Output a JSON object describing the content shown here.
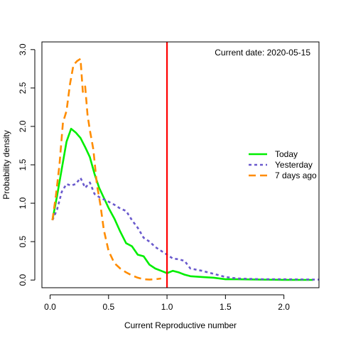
{
  "chart_data": {
    "type": "line",
    "xlabel": "Current Reproductive number",
    "ylabel": "Probability density",
    "xlim": [
      -0.07,
      2.3
    ],
    "ylim": [
      -0.1,
      3.1
    ],
    "xticks": [
      0.0,
      0.5,
      1.0,
      1.5,
      2.0
    ],
    "xtick_labels": [
      "0.0",
      "0.5",
      "1.0",
      "1.5",
      "2.0"
    ],
    "yticks": [
      0.0,
      0.5,
      1.0,
      1.5,
      2.0,
      2.5,
      3.0
    ],
    "ytick_labels": [
      "0.0",
      "0.5",
      "1.0",
      "1.5",
      "2.0",
      "2.5",
      "3.0"
    ],
    "annotation": "Current date:  2020-05-15",
    "vline": {
      "x": 1.0,
      "color": "#ff0000"
    },
    "legend_position": "right",
    "series": [
      {
        "name": "Today",
        "color": "#00ee00",
        "dash": "solid",
        "x": [
          0.02,
          0.06,
          0.1,
          0.14,
          0.18,
          0.22,
          0.26,
          0.3,
          0.34,
          0.38,
          0.42,
          0.46,
          0.5,
          0.55,
          0.6,
          0.65,
          0.7,
          0.75,
          0.8,
          0.85,
          0.9,
          0.95,
          1.0,
          1.05,
          1.1,
          1.15,
          1.2,
          1.3,
          1.4,
          1.5,
          1.6,
          1.8,
          2.0,
          2.25
        ],
        "y": [
          0.78,
          1.1,
          1.45,
          1.8,
          1.97,
          1.92,
          1.85,
          1.73,
          1.6,
          1.38,
          1.2,
          1.07,
          0.94,
          0.8,
          0.63,
          0.48,
          0.44,
          0.33,
          0.31,
          0.2,
          0.15,
          0.12,
          0.09,
          0.12,
          0.1,
          0.07,
          0.05,
          0.04,
          0.03,
          0.01,
          0.01,
          0.005,
          0.003,
          0.002
        ]
      },
      {
        "name": "Yesterday",
        "color": "#6a5acd",
        "dash": "dotted",
        "x": [
          0.02,
          0.06,
          0.1,
          0.14,
          0.18,
          0.22,
          0.26,
          0.3,
          0.34,
          0.38,
          0.42,
          0.46,
          0.5,
          0.55,
          0.6,
          0.65,
          0.7,
          0.75,
          0.8,
          0.85,
          0.9,
          0.95,
          1.0,
          1.05,
          1.1,
          1.15,
          1.2,
          1.3,
          1.4,
          1.5,
          1.6,
          1.8,
          2.0,
          2.3
        ],
        "y": [
          0.78,
          0.92,
          1.15,
          1.25,
          1.23,
          1.25,
          1.33,
          1.2,
          1.27,
          1.12,
          1.08,
          1.05,
          1.02,
          0.98,
          0.93,
          0.9,
          0.78,
          0.68,
          0.55,
          0.5,
          0.43,
          0.38,
          0.33,
          0.28,
          0.27,
          0.25,
          0.15,
          0.12,
          0.08,
          0.04,
          0.02,
          0.01,
          0.01,
          0.005
        ]
      },
      {
        "name": "7 days ago",
        "color": "#ff8c00",
        "dash": "dashed",
        "x": [
          0.02,
          0.05,
          0.08,
          0.11,
          0.14,
          0.17,
          0.2,
          0.23,
          0.26,
          0.28,
          0.3,
          0.32,
          0.34,
          0.37,
          0.4,
          0.43,
          0.46,
          0.5,
          0.55,
          0.6,
          0.65,
          0.7,
          0.75,
          0.8,
          0.85,
          0.9,
          0.95
        ],
        "y": [
          0.78,
          1.1,
          1.5,
          2.05,
          2.2,
          2.55,
          2.8,
          2.85,
          2.88,
          2.45,
          2.52,
          2.15,
          1.95,
          1.7,
          1.25,
          0.98,
          0.65,
          0.38,
          0.22,
          0.15,
          0.1,
          0.06,
          0.03,
          0.01,
          0.005,
          0.01,
          0.02
        ]
      }
    ]
  }
}
